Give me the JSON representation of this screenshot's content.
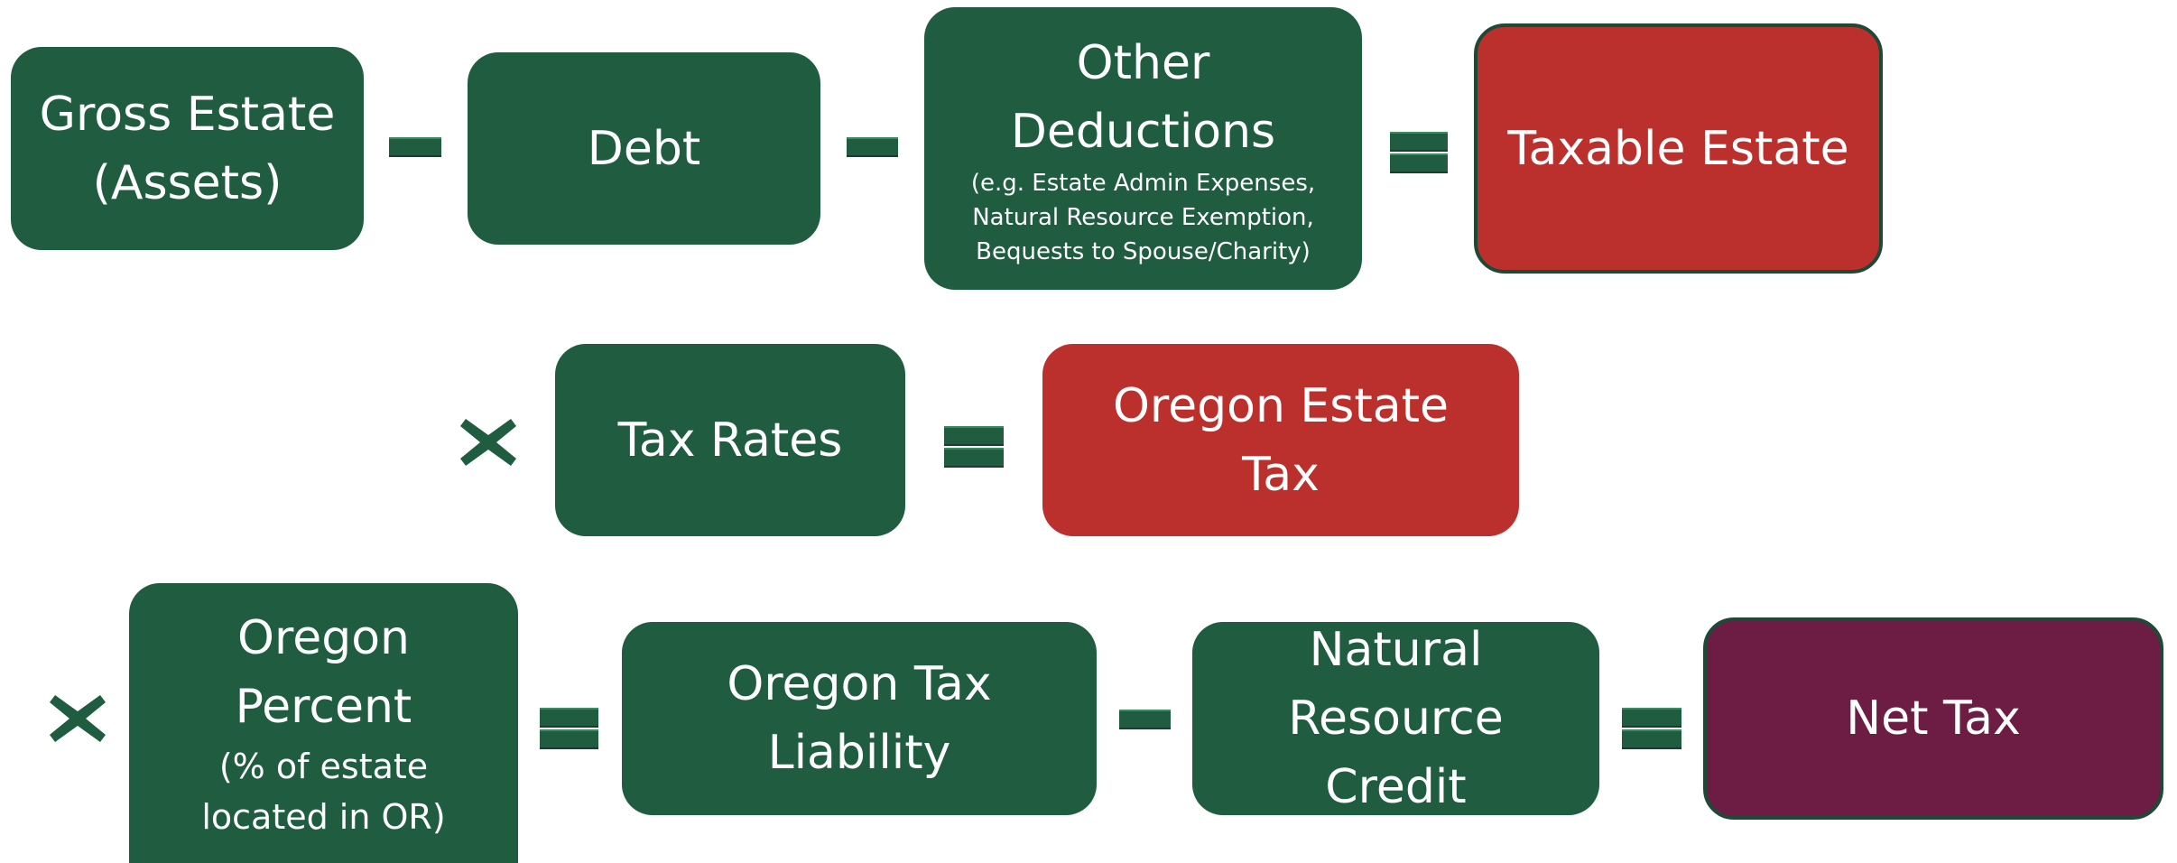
{
  "nodes": [
    {
      "label": [
        "Gross Estate",
        "(Assets)"
      ]
    },
    {
      "label": [
        "Debt"
      ]
    },
    {
      "label": [
        "Other",
        "Deductions"
      ],
      "note": [
        "(e.g. Estate Admin Expenses,",
        "Natural Resource Exemption,",
        "Bequests to Spouse/Charity)"
      ]
    },
    {
      "label": [
        "Taxable Estate"
      ]
    },
    {
      "label": [
        "Tax Rates"
      ]
    },
    {
      "label": [
        "Oregon Estate",
        "Tax"
      ]
    },
    {
      "label": [
        "Oregon",
        "Percent"
      ],
      "note": [
        "(% of estate",
        "located in OR)"
      ]
    },
    {
      "label": [
        "Oregon Tax",
        "Liability"
      ]
    },
    {
      "label": [
        "Natural",
        "Resource",
        "Credit"
      ]
    },
    {
      "label": [
        "Net Tax"
      ]
    }
  ]
}
